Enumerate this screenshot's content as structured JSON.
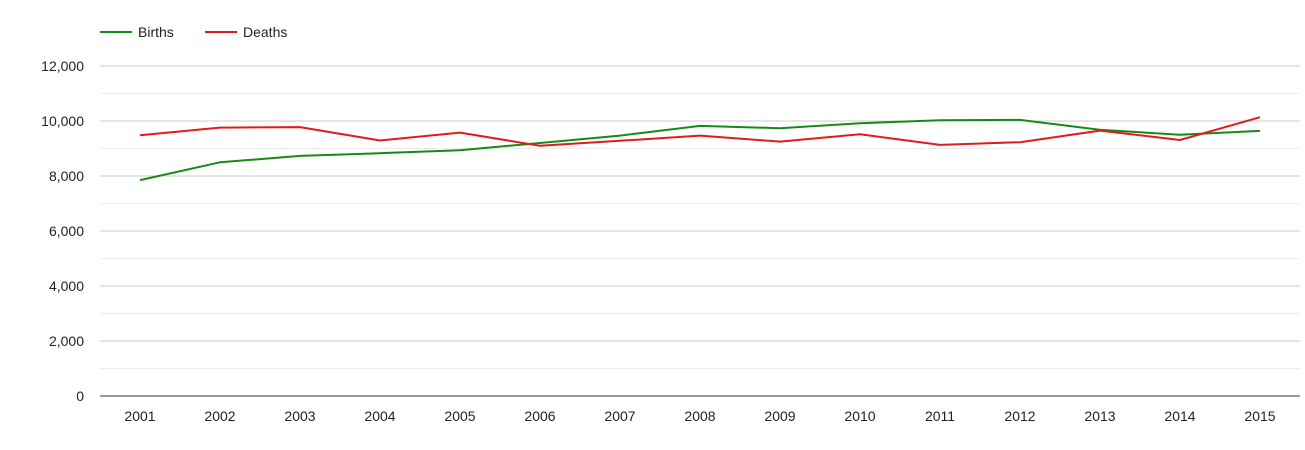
{
  "chart_data": {
    "type": "line",
    "x": [
      "2001",
      "2002",
      "2003",
      "2004",
      "2005",
      "2006",
      "2007",
      "2008",
      "2009",
      "2010",
      "2011",
      "2012",
      "2013",
      "2014",
      "2015"
    ],
    "series": [
      {
        "name": "Births",
        "color": "#168a16",
        "values": [
          7850,
          8500,
          8730,
          8830,
          8940,
          9200,
          9470,
          9820,
          9740,
          9920,
          10030,
          10040,
          9680,
          9500,
          9640
        ]
      },
      {
        "name": "Deaths",
        "color": "#e01b1b",
        "values": [
          9480,
          9760,
          9780,
          9290,
          9580,
          9100,
          9280,
          9470,
          9250,
          9520,
          9130,
          9230,
          9650,
          9310,
          10140
        ]
      }
    ],
    "yticks": [
      "0",
      "2,000",
      "4,000",
      "6,000",
      "8,000",
      "10,000",
      "12,000"
    ],
    "ylim": [
      0,
      12000
    ],
    "legend": "top-left",
    "grid": true
  }
}
